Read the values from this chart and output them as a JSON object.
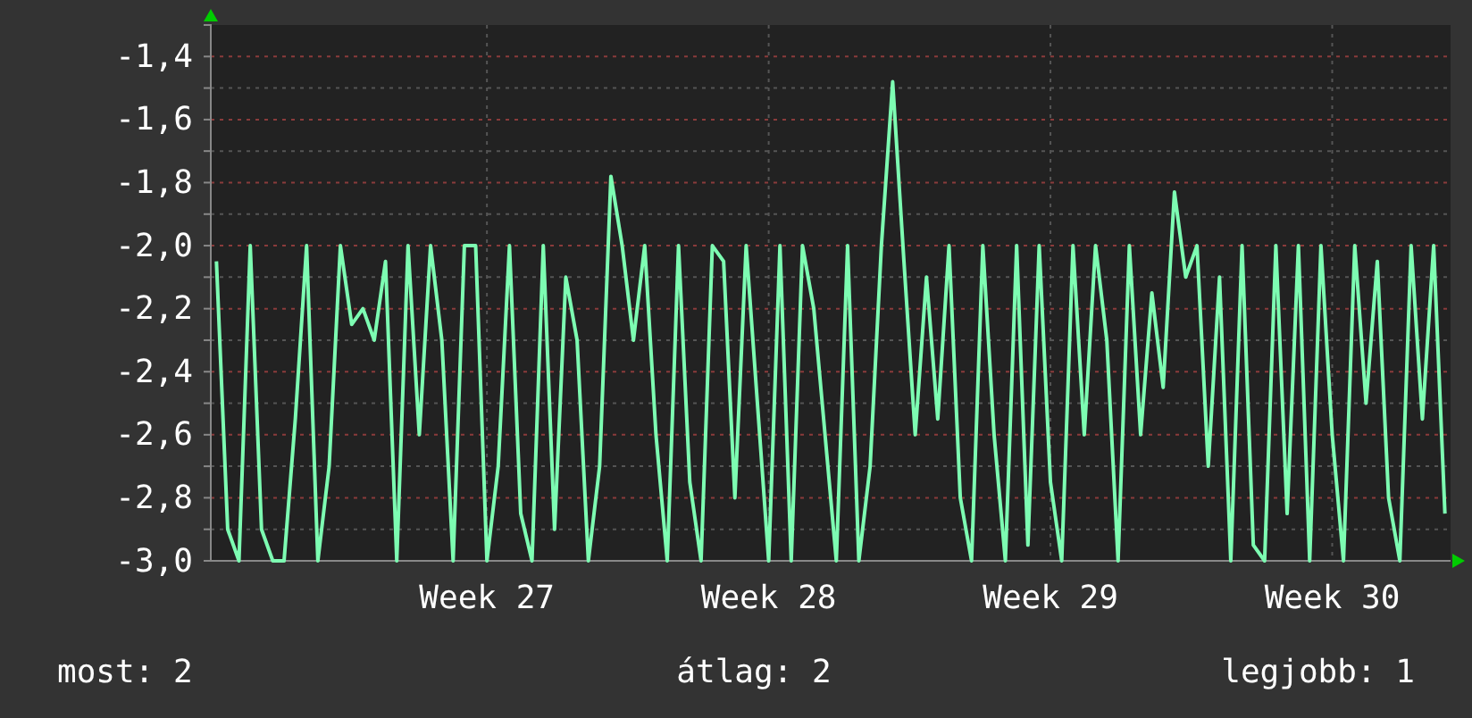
{
  "chart_data": {
    "type": "line",
    "categories": [
      null,
      null,
      null,
      null,
      null,
      null,
      null,
      null,
      null,
      null,
      null,
      null,
      null,
      null,
      null,
      null,
      null,
      null,
      null,
      null,
      null,
      null,
      null,
      null,
      "Week 27",
      null,
      null,
      null,
      null,
      null,
      null,
      null,
      null,
      null,
      null,
      null,
      null,
      null,
      null,
      null,
      null,
      null,
      null,
      null,
      null,
      null,
      null,
      null,
      null,
      "Week 28",
      null,
      null,
      null,
      null,
      null,
      null,
      null,
      null,
      null,
      null,
      null,
      null,
      null,
      null,
      null,
      null,
      null,
      null,
      null,
      null,
      null,
      null,
      null,
      null,
      "Week 29",
      null,
      null,
      null,
      null,
      null,
      null,
      null,
      null,
      null,
      null,
      null,
      null,
      null,
      null,
      null,
      null,
      null,
      null,
      null,
      null,
      null,
      null,
      null,
      null,
      "Week 30",
      null,
      null,
      null,
      null,
      null,
      null,
      null,
      null,
      null,
      null
    ],
    "series": [
      {
        "color": "#7dfcb2",
        "values": [
          -2.05,
          -2.9,
          -3.0,
          -2.0,
          -2.9,
          -3.0,
          -3.0,
          -2.55,
          -2.0,
          -3.0,
          -2.7,
          -2.0,
          -2.25,
          -2.2,
          -2.3,
          -2.05,
          -3.0,
          -2.0,
          -2.6,
          -2.0,
          -2.3,
          -3.0,
          -2.0,
          -2.0,
          -3.0,
          -2.7,
          -2.0,
          -2.85,
          -3.0,
          -2.0,
          -2.9,
          -2.1,
          -2.3,
          -3.0,
          -2.7,
          -1.78,
          -2.0,
          -2.3,
          -2.0,
          -2.6,
          -3.0,
          -2.0,
          -2.75,
          -3.0,
          -2.0,
          -2.05,
          -2.8,
          -2.0,
          -2.5,
          -3.0,
          -2.0,
          -3.0,
          -2.0,
          -2.2,
          -2.6,
          -3.0,
          -2.0,
          -3.0,
          -2.7,
          -2.0,
          -1.48,
          -2.05,
          -2.6,
          -2.1,
          -2.55,
          -2.0,
          -2.8,
          -3.0,
          -2.0,
          -2.6,
          -3.0,
          -2.0,
          -2.95,
          -2.0,
          -2.75,
          -3.0,
          -2.0,
          -2.6,
          -2.0,
          -2.3,
          -3.0,
          -2.0,
          -2.6,
          -2.15,
          -2.45,
          -1.83,
          -2.1,
          -2.0,
          -2.7,
          -2.1,
          -3.0,
          -2.0,
          -2.95,
          -3.0,
          -2.0,
          -2.85,
          -2.0,
          -3.0,
          -2.0,
          -2.6,
          -3.0,
          -2.0,
          -2.5,
          -2.05,
          -2.8,
          -3.0,
          -2.0,
          -2.55,
          -2.0,
          -2.85
        ]
      }
    ],
    "ylim": [
      -3.0,
      -1.3
    ],
    "yticks": [
      {
        "value": -3.0,
        "label": "-3,0"
      },
      {
        "value": -2.9,
        "label": null
      },
      {
        "value": -2.8,
        "label": "-2,8"
      },
      {
        "value": -2.7,
        "label": null
      },
      {
        "value": -2.6,
        "label": "-2,6"
      },
      {
        "value": -2.5,
        "label": null
      },
      {
        "value": -2.4,
        "label": "-2,4"
      },
      {
        "value": -2.3,
        "label": null
      },
      {
        "value": -2.2,
        "label": "-2,2"
      },
      {
        "value": -2.1,
        "label": null
      },
      {
        "value": -2.0,
        "label": "-2,0"
      },
      {
        "value": -1.9,
        "label": null
      },
      {
        "value": -1.8,
        "label": "-1,8"
      },
      {
        "value": -1.7,
        "label": null
      },
      {
        "value": -1.6,
        "label": "-1,6"
      },
      {
        "value": -1.5,
        "label": null
      },
      {
        "value": -1.4,
        "label": "-1,4"
      }
    ],
    "grid": true,
    "marker": "none",
    "line_style": "solid",
    "annotations": [
      "most: 2",
      "átlag: 2",
      "legjobb: 1"
    ]
  }
}
